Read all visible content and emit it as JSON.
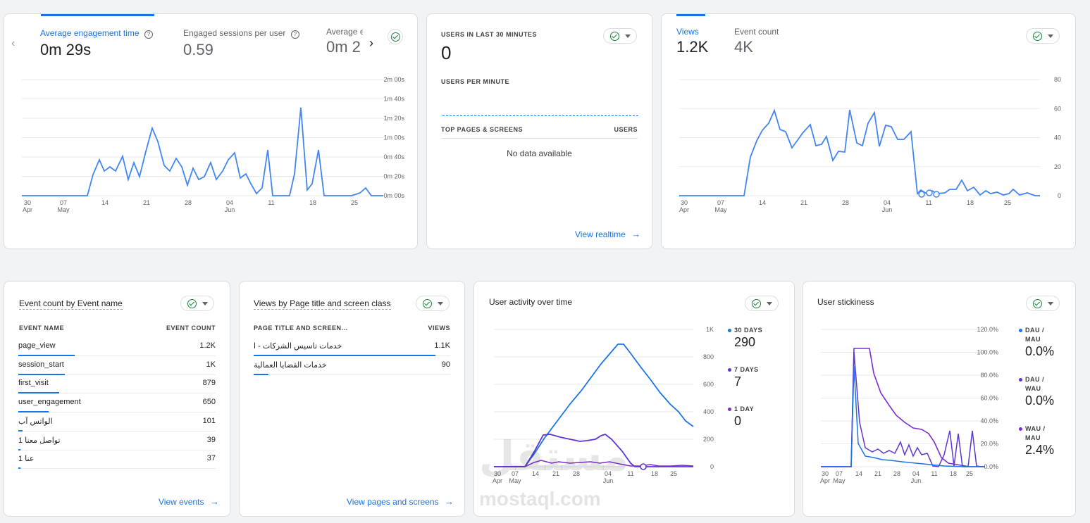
{
  "card1": {
    "metrics": [
      {
        "label": "Average engagement time",
        "value": "0m 29s"
      },
      {
        "label": "Engaged sessions per user",
        "value": "0.59"
      },
      {
        "label": "Average e",
        "value": "0m 2"
      }
    ],
    "y_ticks": [
      "2m 00s",
      "1m 40s",
      "1m 20s",
      "1m 00s",
      "0m 40s",
      "0m 20s",
      "0m 00s"
    ],
    "x_ticks": [
      [
        "30",
        "Apr"
      ],
      [
        "07",
        "May"
      ],
      [
        "14",
        ""
      ],
      [
        "21",
        ""
      ],
      [
        "28",
        ""
      ],
      [
        "04",
        "Jun"
      ],
      [
        "11",
        ""
      ],
      [
        "18",
        ""
      ],
      [
        "25",
        ""
      ]
    ]
  },
  "card2": {
    "title": "USERS IN LAST 30 MINUTES",
    "value": "0",
    "per_minute": "USERS PER MINUTE",
    "col_left": "TOP PAGES & SCREENS",
    "col_right": "USERS",
    "empty": "No data available",
    "link": "View realtime"
  },
  "card3": {
    "metrics": [
      {
        "label": "Views",
        "value": "1.2K"
      },
      {
        "label": "Event count",
        "value": "4K"
      }
    ],
    "y_ticks": [
      "80",
      "60",
      "40",
      "20",
      "0"
    ],
    "x_ticks": [
      [
        "30",
        "Apr"
      ],
      [
        "07",
        "May"
      ],
      [
        "14",
        ""
      ],
      [
        "21",
        ""
      ],
      [
        "28",
        ""
      ],
      [
        "04",
        "Jun"
      ],
      [
        "11",
        ""
      ],
      [
        "18",
        ""
      ],
      [
        "25",
        ""
      ]
    ]
  },
  "card4": {
    "title": "Event count by Event name",
    "col_left": "EVENT NAME",
    "col_right": "EVENT COUNT",
    "rows": [
      {
        "name": "page_view",
        "value": "1.2K",
        "share": 1.0
      },
      {
        "name": "session_start",
        "value": "1K",
        "share": 0.83
      },
      {
        "name": "first_visit",
        "value": "879",
        "share": 0.73
      },
      {
        "name": "user_engagement",
        "value": "650",
        "share": 0.54
      },
      {
        "name": "الواتس آب",
        "value": "101",
        "share": 0.08
      },
      {
        "name": "تواصل معنا 1",
        "value": "39",
        "share": 0.03
      },
      {
        "name": "عنا 1",
        "value": "37",
        "share": 0.03
      }
    ],
    "link": "View events"
  },
  "card5": {
    "title": "Views by Page title and screen class",
    "col_left": "PAGE TITLE AND SCREEN…",
    "col_right": "VIEWS",
    "rows": [
      {
        "name": "خدمات تاسيس الشركات - ا",
        "value": "1.1K",
        "share": 1.0
      },
      {
        "name": "خدمات القضايا العمالية",
        "value": "90",
        "share": 0.08
      }
    ],
    "link": "View pages and screens"
  },
  "card6": {
    "title": "User activity over time",
    "y_ticks": [
      "1K",
      "800",
      "600",
      "400",
      "200",
      "0"
    ],
    "x_ticks": [
      [
        "30",
        "Apr"
      ],
      [
        "07",
        "May"
      ],
      [
        "14",
        ""
      ],
      [
        "21",
        ""
      ],
      [
        "28",
        ""
      ],
      [
        "04",
        "Jun"
      ],
      [
        "11",
        ""
      ],
      [
        "18",
        ""
      ],
      [
        "25",
        ""
      ]
    ],
    "legend": [
      {
        "label": "30 DAYS",
        "value": "290",
        "color": "#1a73e8"
      },
      {
        "label": "7 DAYS",
        "value": "7",
        "color": "#5e35d1"
      },
      {
        "label": "1 DAY",
        "value": "0",
        "color": "#7b2ecf"
      }
    ]
  },
  "card7": {
    "title": "User stickiness",
    "y_ticks": [
      "120.0%",
      "100.0%",
      "80.0%",
      "60.0%",
      "40.0%",
      "20.0%",
      "0.0%"
    ],
    "x_ticks": [
      [
        "30",
        "Apr"
      ],
      [
        "07",
        "May"
      ],
      [
        "14",
        ""
      ],
      [
        "21",
        ""
      ],
      [
        "28",
        ""
      ],
      [
        "04",
        "Jun"
      ],
      [
        "11",
        ""
      ],
      [
        "18",
        ""
      ],
      [
        "25",
        ""
      ]
    ],
    "legend": [
      {
        "label1": "DAU /",
        "label2": "MAU",
        "value": "0.0%",
        "color": "#1a73e8"
      },
      {
        "label1": "DAU /",
        "label2": "WAU",
        "value": "0.0%",
        "color": "#5e35d1"
      },
      {
        "label1": "WAU /",
        "label2": "MAU",
        "value": "2.4%",
        "color": "#7b2ecf"
      }
    ]
  },
  "watermark": {
    "brand": "مستقل",
    "domain": "mostaql.com"
  },
  "colors": {
    "accent": "#1a73e8",
    "purple": "#5e35d1",
    "violet": "#7b2ecf",
    "success": "#188038"
  }
}
